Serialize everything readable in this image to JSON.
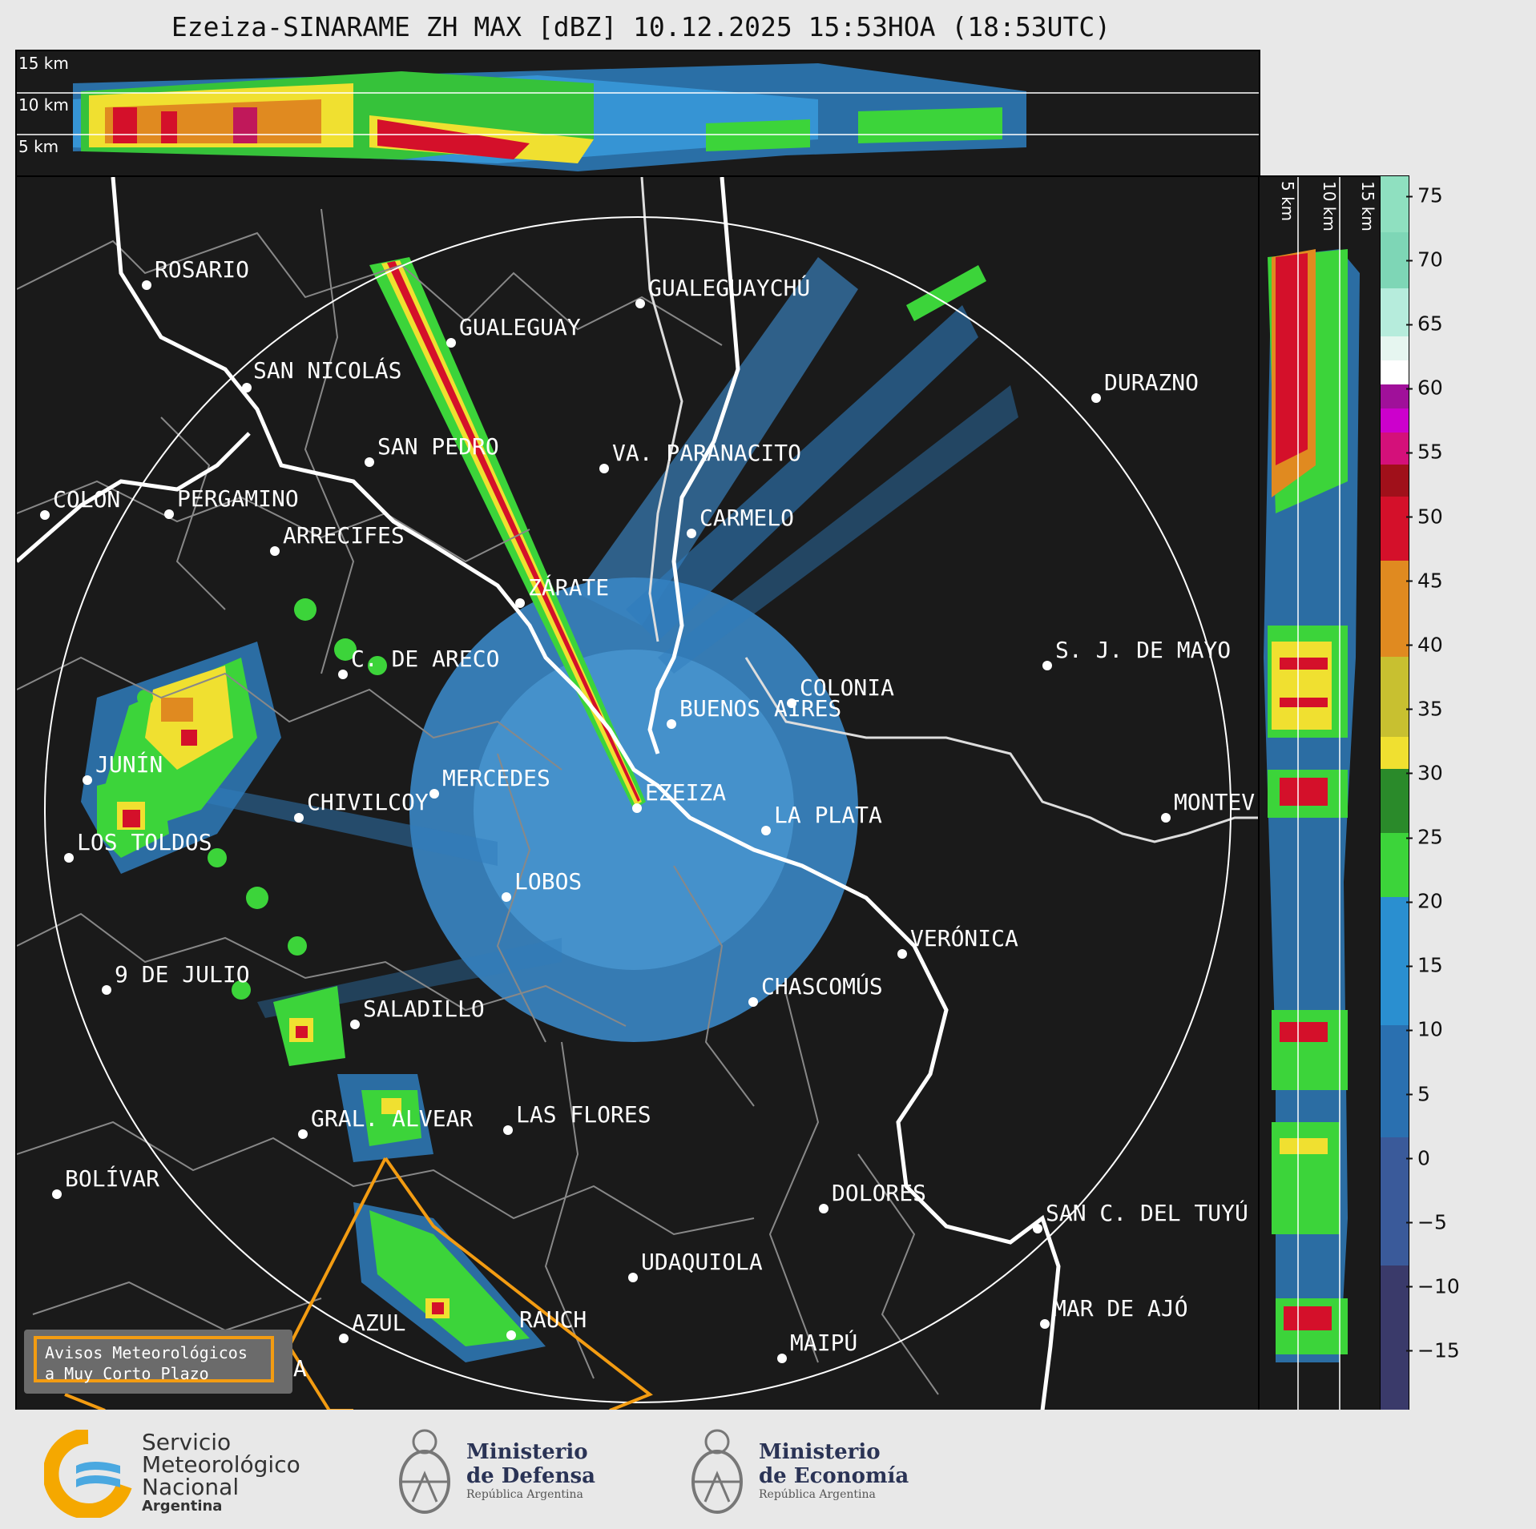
{
  "title": "Ezeiza-SINARAME ZH MAX [dBZ] 10.12.2025 15:53HOA (18:53UTC)",
  "altitude_labels": [
    "15 km",
    "10 km",
    "5 km"
  ],
  "side_altitude_labels": [
    "5 km",
    "10 km",
    "15 km"
  ],
  "colorbar": {
    "ticks": [
      "75",
      "70",
      "65",
      "60",
      "55",
      "50",
      "45",
      "40",
      "35",
      "30",
      "25",
      "20",
      "15",
      "10",
      "5",
      "0",
      "−5",
      "−10",
      "−15"
    ]
  },
  "cities": [
    {
      "name": "ROSARIO"
    },
    {
      "name": "GUALEGUAYCHÚ"
    },
    {
      "name": "GUALEGUAY"
    },
    {
      "name": "SAN NICOLÁS"
    },
    {
      "name": "DURAZNO"
    },
    {
      "name": "SAN PEDRO"
    },
    {
      "name": "VA. PARANACITO"
    },
    {
      "name": "COLON"
    },
    {
      "name": "PERGAMINO"
    },
    {
      "name": "CARMELO"
    },
    {
      "name": "ARRECIFES"
    },
    {
      "name": "ZÁRATE"
    },
    {
      "name": "S. J. DE MAYO"
    },
    {
      "name": "C. DE ARECO"
    },
    {
      "name": "COLONIA"
    },
    {
      "name": "BUENOS AIRES"
    },
    {
      "name": "JUNÍN"
    },
    {
      "name": "MERCEDES"
    },
    {
      "name": "EZEIZA"
    },
    {
      "name": "MONTEV"
    },
    {
      "name": "CHIVILCOY"
    },
    {
      "name": "LA PLATA"
    },
    {
      "name": "LOS TOLDOS"
    },
    {
      "name": "LOBOS"
    },
    {
      "name": "VERÓNICA"
    },
    {
      "name": "9 DE JULIO"
    },
    {
      "name": "CHASCOMÚS"
    },
    {
      "name": "SALADILLO"
    },
    {
      "name": "GRAL. ALVEAR"
    },
    {
      "name": "LAS FLORES"
    },
    {
      "name": "BOLÍVAR"
    },
    {
      "name": "DOLORES"
    },
    {
      "name": "SAN C. DEL TUYÚ"
    },
    {
      "name": "UDAQUIOLA"
    },
    {
      "name": "RAUCH"
    },
    {
      "name": "MAR DE AJÓ"
    },
    {
      "name": "AZUL"
    },
    {
      "name": "MAIPÚ"
    },
    {
      "name": "OLAVARRÍA"
    }
  ],
  "avisos": {
    "line1": "Avisos Meteorológicos",
    "line2": "a Muy Corto Plazo"
  },
  "logos": {
    "smn": {
      "line1": "Servicio",
      "line2": "Meteorológico",
      "line3": "Nacional",
      "line4": "Argentina"
    },
    "defensa": {
      "line1": "Ministerio",
      "line2": "de Defensa",
      "line3": "República Argentina"
    },
    "economia": {
      "line1": "Ministerio",
      "line2": "de Economía",
      "line3": "República Argentina"
    }
  },
  "colors": {
    "background": "#1a1a1a",
    "coast": "#ffffff",
    "borders": "#888888",
    "warning": "#f39c12"
  }
}
